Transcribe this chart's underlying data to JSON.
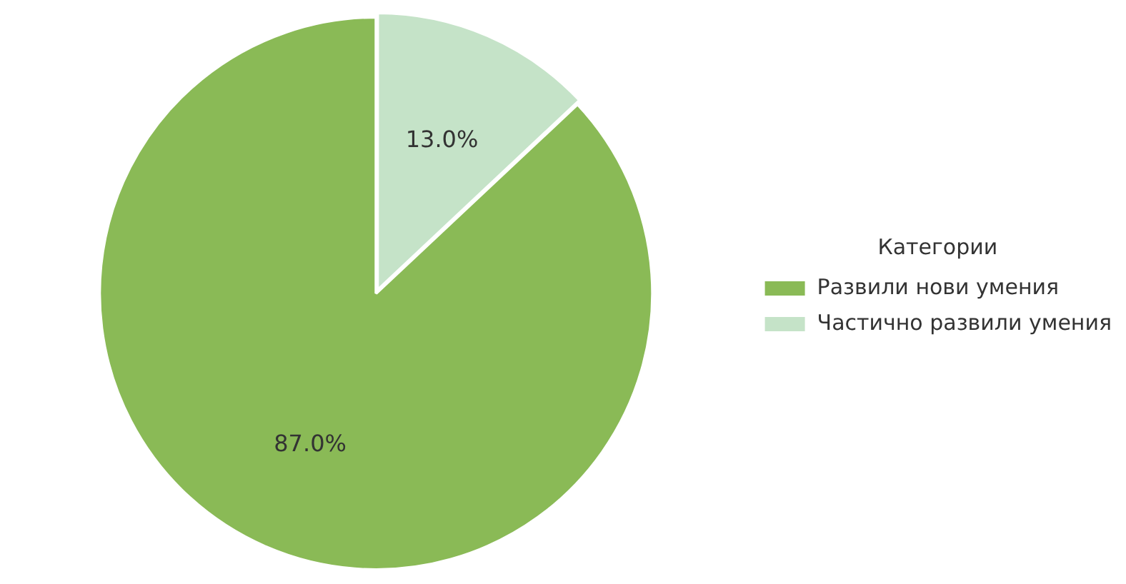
{
  "chart_data": {
    "type": "pie",
    "legend_title": "Категории",
    "legend": "right",
    "categories": [
      "Развили нови умения",
      "Частично развили умения"
    ],
    "values": [
      87.0,
      13.0
    ],
    "colors": [
      "#8aba56",
      "#c5e3c8"
    ],
    "value_labels": [
      "87.0%",
      "13.0%"
    ]
  }
}
